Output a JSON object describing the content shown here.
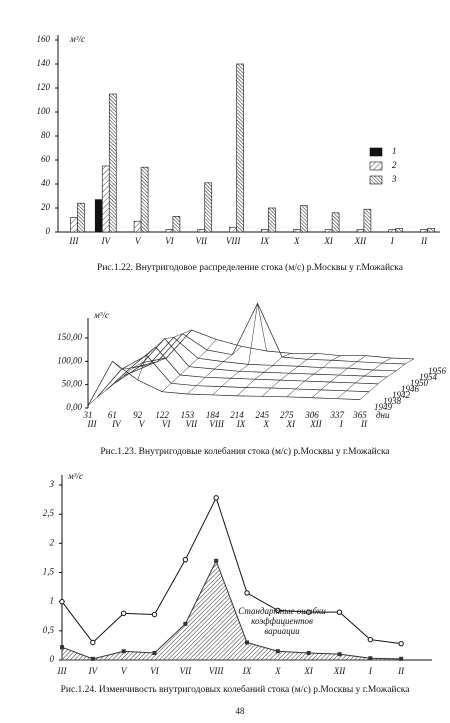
{
  "chart_data": [
    {
      "type": "bar",
      "caption": "Рис.1.22. Внутригодовое распределение стока (м/с) р.Москвы у г.Можайска",
      "y_label": "м³/с",
      "categories": [
        "III",
        "IV",
        "V",
        "VI",
        "VII",
        "VIII",
        "IX",
        "X",
        "XI",
        "XII",
        "I",
        "II"
      ],
      "series": [
        {
          "name": "1",
          "color": "#111111",
          "values": [
            0,
            27,
            0,
            0,
            0,
            0,
            0,
            0,
            0,
            0,
            0,
            0
          ]
        },
        {
          "name": "2",
          "color": "#555555",
          "values": [
            12,
            55,
            9,
            2,
            2,
            4,
            2,
            2,
            2,
            2,
            2,
            2
          ]
        },
        {
          "name": "3",
          "color": "#222222",
          "values": [
            24,
            115,
            54,
            13,
            41,
            140,
            20,
            22,
            16,
            19,
            3,
            3
          ]
        }
      ],
      "ylim": [
        0,
        160
      ],
      "yticks": [
        0,
        20,
        40,
        60,
        80,
        100,
        120,
        140,
        160
      ],
      "legend": "right"
    },
    {
      "type": "surface",
      "caption": "Рис.1.23. Внутригодовые колебания стока (м/с) р.Москвы у г.Можайска",
      "y_label": "м³/с",
      "x_unit": "дни",
      "x": [
        31,
        61,
        92,
        122,
        153,
        184,
        214,
        245,
        275,
        306,
        337,
        365
      ],
      "xlim": [
        31,
        365
      ],
      "months": [
        "III",
        "IV",
        "V",
        "VI",
        "VII",
        "VIII",
        "IX",
        "X",
        "XI",
        "XII",
        "I",
        "II"
      ],
      "series": [
        {
          "name": "1956",
          "values": [
            20,
            30,
            90,
            70,
            55,
            45,
            40,
            40,
            35,
            35,
            30,
            28
          ]
        },
        {
          "name": "1954",
          "values": [
            22,
            35,
            95,
            60,
            50,
            160,
            45,
            40,
            38,
            35,
            32,
            30
          ]
        },
        {
          "name": "1950",
          "values": [
            18,
            40,
            100,
            55,
            48,
            42,
            40,
            38,
            35,
            34,
            30,
            28
          ]
        },
        {
          "name": "1946",
          "values": [
            15,
            50,
            110,
            50,
            45,
            40,
            38,
            36,
            34,
            32,
            30,
            28
          ]
        },
        {
          "name": "1942",
          "values": [
            12,
            60,
            105,
            45,
            40,
            38,
            36,
            34,
            32,
            30,
            28,
            26
          ]
        },
        {
          "name": "1938",
          "values": [
            10,
            70,
            100,
            40,
            35,
            33,
            31,
            30,
            28,
            26,
            24,
            22
          ]
        },
        {
          "name": "1949",
          "values": [
            5,
            100,
            60,
            35,
            30,
            28,
            26,
            25,
            24,
            22,
            20,
            18
          ]
        }
      ],
      "ylim": [
        0,
        150
      ],
      "yticks": [
        {
          "value": 0,
          "label": "0,00"
        },
        {
          "value": 50,
          "label": "50,00"
        },
        {
          "value": 100,
          "label": "100,00"
        },
        {
          "value": 150,
          "label": "150,00"
        }
      ],
      "color": "#222222"
    },
    {
      "type": "line",
      "caption": "Рис.1.24. Изменчивость внутригодовых колебаний стока (м/с) р.Москвы у г.Можайска",
      "y_label": "м³/с",
      "annotation": [
        "Стандартные ошибки",
        "коэффициентов",
        "вариации"
      ],
      "categories": [
        "III",
        "IV",
        "V",
        "VI",
        "VII",
        "VIII",
        "IX",
        "X",
        "XI",
        "XII",
        "I",
        "II"
      ],
      "series": [
        {
          "color": "#111111",
          "style": "line",
          "values": [
            1.0,
            0.3,
            0.8,
            0.78,
            1.72,
            2.78,
            1.15,
            0.85,
            0.82,
            0.82,
            0.35,
            0.28
          ]
        },
        {
          "color": "#333333",
          "style": "area",
          "values": [
            0.22,
            0.02,
            0.15,
            0.12,
            0.62,
            1.7,
            0.3,
            0.15,
            0.12,
            0.1,
            0.03,
            0.02
          ]
        }
      ],
      "ylim": [
        0,
        3
      ],
      "yticks": [
        0,
        {
          "value": 0.5,
          "label": "0,5"
        },
        1,
        {
          "value": 1.5,
          "label": "1,5"
        },
        2,
        {
          "value": 2.5,
          "label": "2,5"
        },
        3
      ]
    }
  ],
  "page_number": "48"
}
